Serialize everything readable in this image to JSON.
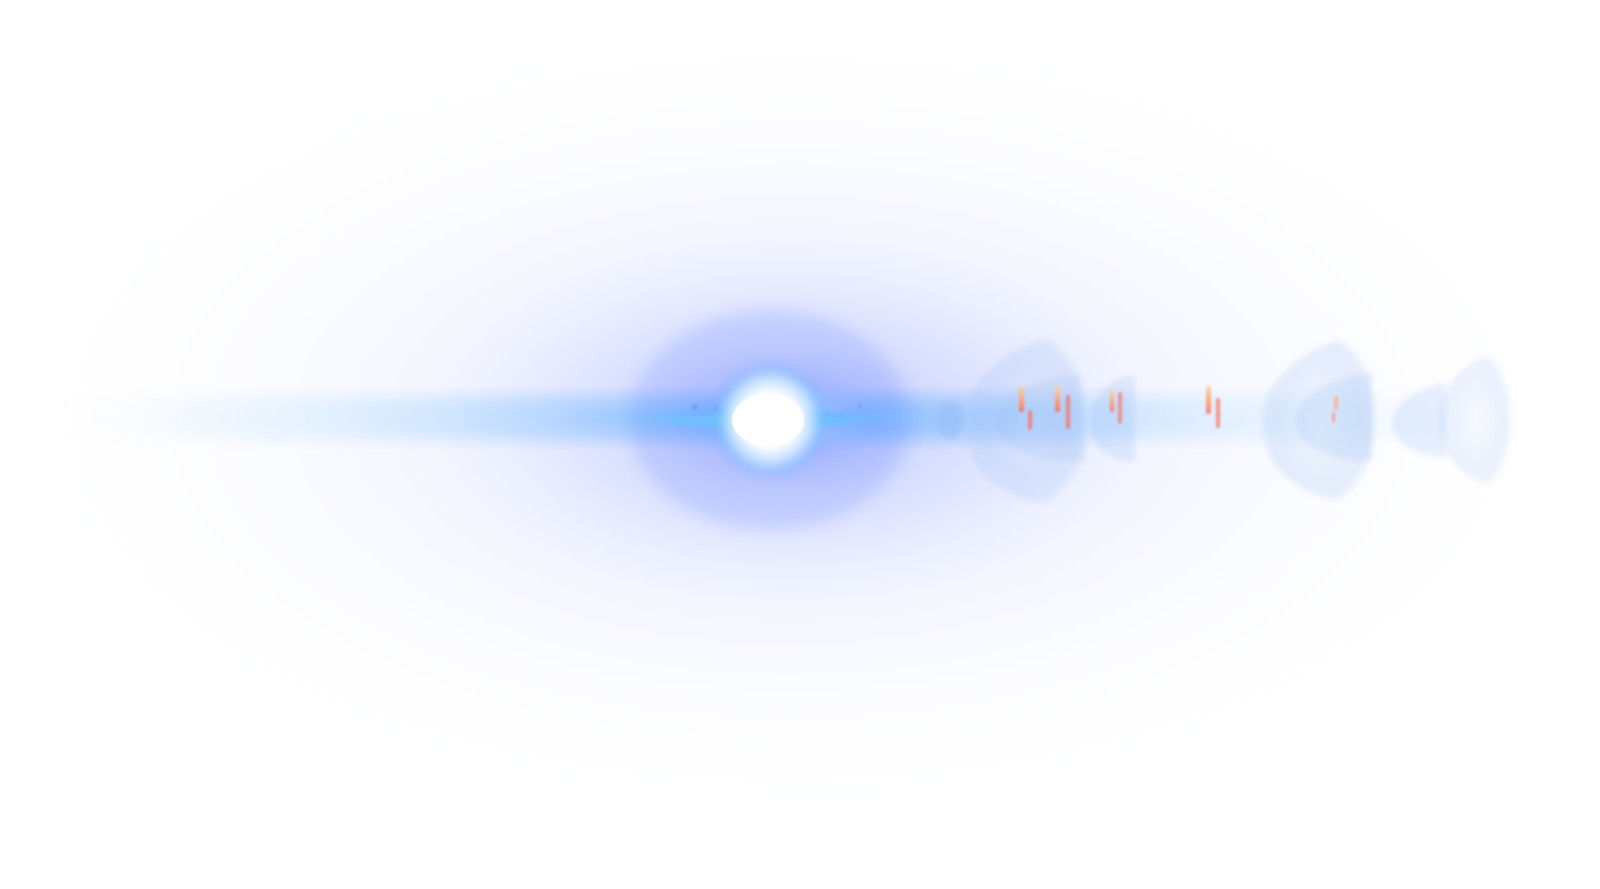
{
  "image": {
    "subject": "lens-flare",
    "colors": {
      "background": "#ffffff",
      "halo": "#5a78ff",
      "streak": "#3aa0ff",
      "core": "#ffffff",
      "ghost": "#8cb4f0",
      "ghost_warm": "#ff7a4a",
      "ghost_warm_light": "#ffd2a8"
    }
  }
}
